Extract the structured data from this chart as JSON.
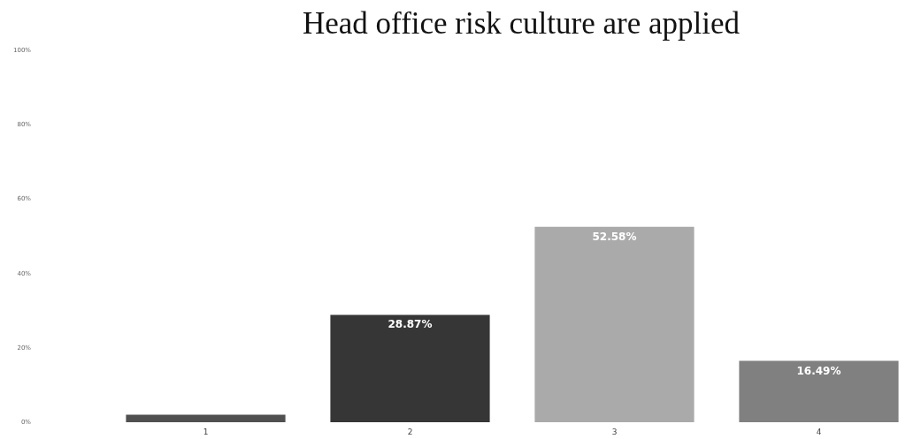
{
  "chart_data": {
    "type": "bar",
    "title": "Head office risk culture are applied",
    "categories": [
      "1",
      "2",
      "3",
      "4"
    ],
    "values": [
      2,
      28.87,
      52.58,
      16.49
    ],
    "colors": [
      "#505050",
      "#363636",
      "#aaaaaa",
      "#808080"
    ],
    "value_labels": [
      null,
      "28.87%",
      "52.58%",
      "16.49%"
    ],
    "ylim": [
      0,
      100
    ],
    "yticks": [
      {
        "value": 0,
        "label": "0%"
      },
      {
        "value": 20,
        "label": "20%"
      },
      {
        "value": 40,
        "label": "40%"
      },
      {
        "value": 60,
        "label": "60%"
      },
      {
        "value": 80,
        "label": "80%"
      },
      {
        "value": 100,
        "label": "100%"
      }
    ]
  }
}
